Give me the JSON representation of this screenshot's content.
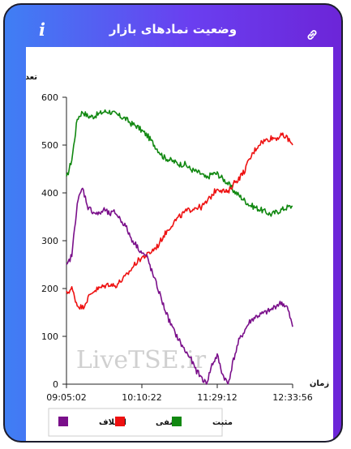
{
  "header": {
    "title": "وضعیت نمادهای بازار",
    "info_icon": "info-icon",
    "link_icon": "link-icon"
  },
  "chart_data": {
    "type": "line",
    "ylabel": "تعداد نماد",
    "xlabel": "زمان",
    "ylim": [
      0,
      600
    ],
    "yticks": [
      0,
      100,
      200,
      300,
      400,
      500,
      600
    ],
    "xticks": [
      "09:05:02",
      "10:10:22",
      "11:29:12",
      "12:33:56"
    ],
    "watermark": "LiveTSE.ir",
    "grid": false,
    "legend_position": "bottom-left",
    "x": [
      "09:05",
      "09:10",
      "09:15",
      "09:20",
      "09:25",
      "09:30",
      "09:35",
      "09:40",
      "09:45",
      "09:50",
      "09:55",
      "10:00",
      "10:05",
      "10:10",
      "10:15",
      "10:20",
      "10:25",
      "10:30",
      "10:35",
      "10:40",
      "10:45",
      "10:50",
      "10:55",
      "11:00",
      "11:05",
      "11:10",
      "11:15",
      "11:20",
      "11:25",
      "11:30",
      "11:35",
      "11:40",
      "11:45",
      "11:50",
      "11:55",
      "12:00",
      "12:05",
      "12:10",
      "12:15",
      "12:20",
      "12:25",
      "12:30",
      "12:34"
    ],
    "series": [
      {
        "name": "مثبت",
        "color": "#118811",
        "values": [
          430,
          470,
          555,
          570,
          560,
          560,
          565,
          570,
          570,
          565,
          560,
          555,
          545,
          540,
          530,
          520,
          505,
          490,
          475,
          470,
          465,
          460,
          460,
          450,
          445,
          440,
          430,
          440,
          440,
          430,
          420,
          405,
          395,
          385,
          375,
          370,
          365,
          360,
          355,
          360,
          365,
          370,
          372
        ]
      },
      {
        "name": "منفی",
        "color": "#ee1111",
        "values": [
          190,
          200,
          165,
          160,
          180,
          195,
          200,
          205,
          210,
          205,
          215,
          225,
          240,
          255,
          265,
          270,
          280,
          290,
          310,
          325,
          340,
          350,
          360,
          365,
          370,
          370,
          380,
          395,
          410,
          405,
          400,
          420,
          430,
          445,
          470,
          490,
          505,
          510,
          515,
          515,
          520,
          515,
          500
        ]
      },
      {
        "name": "اختلاف",
        "color": "#7a0f8a",
        "values": [
          245,
          270,
          380,
          410,
          370,
          360,
          355,
          365,
          355,
          360,
          345,
          330,
          305,
          290,
          275,
          265,
          230,
          200,
          165,
          135,
          110,
          90,
          70,
          55,
          30,
          15,
          0,
          40,
          60,
          20,
          0,
          50,
          90,
          110,
          130,
          140,
          145,
          150,
          155,
          165,
          170,
          160,
          120
        ]
      }
    ]
  }
}
